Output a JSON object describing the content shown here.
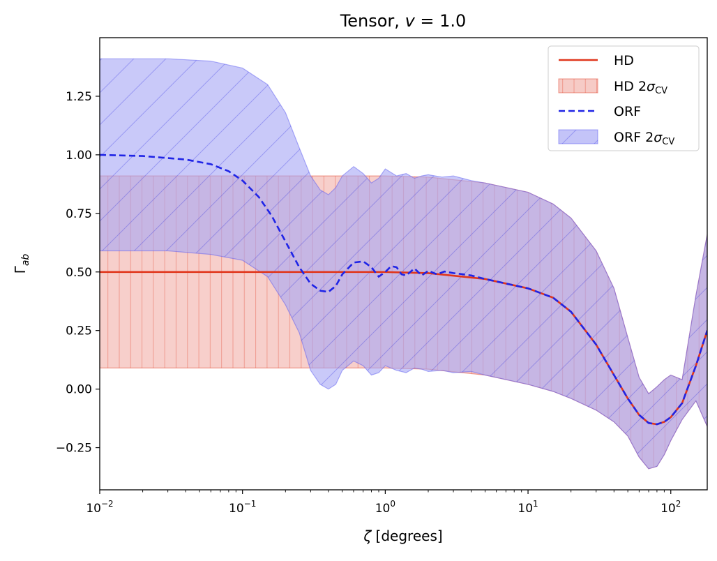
{
  "chart_data": {
    "type": "line",
    "title_prefix": "Tensor, ",
    "title_var": "v",
    "title_suffix": " = 1.0",
    "xlabel_var": "ζ",
    "xlabel_unit": " [degrees]",
    "ylabel_main": "Γ",
    "ylabel_sub": "ab",
    "xscale": "log",
    "xlim": [
      0.01,
      180
    ],
    "ylim": [
      -0.43,
      1.5
    ],
    "xtick_base": "10",
    "xticks": [
      {
        "value": 0.01,
        "exp": "−2"
      },
      {
        "value": 0.1,
        "exp": "−1"
      },
      {
        "value": 1,
        "exp": "0"
      },
      {
        "value": 10,
        "exp": "1"
      },
      {
        "value": 100,
        "exp": "2"
      }
    ],
    "yticks": [
      {
        "value": -0.25,
        "label": "−0.25"
      },
      {
        "value": 0.0,
        "label": "0.00"
      },
      {
        "value": 0.25,
        "label": "0.25"
      },
      {
        "value": 0.5,
        "label": "0.50"
      },
      {
        "value": 0.75,
        "label": "0.75"
      },
      {
        "value": 1.0,
        "label": "1.00"
      },
      {
        "value": 1.25,
        "label": "1.25"
      }
    ],
    "grid": false,
    "legend_position": "top-right",
    "colors": {
      "hd_line": "#e0361c",
      "hd_fill": "#f0a8a0",
      "hd_edge": "#e0361c",
      "orf_line": "#1f24e6",
      "orf_fill": "#a5a5f5",
      "orf_edge": "#5050f0"
    },
    "legend": [
      {
        "key": "hd",
        "label": "HD",
        "style": "line"
      },
      {
        "key": "hd_band",
        "label_main": "HD 2",
        "label_sym": "σ",
        "label_sub": "CV",
        "style": "patch-hd"
      },
      {
        "key": "orf",
        "label": "ORF",
        "style": "dashed"
      },
      {
        "key": "orf_band",
        "label_main": "ORF 2",
        "label_sym": "σ",
        "label_sub": "CV",
        "style": "patch-orf"
      }
    ],
    "series": [
      {
        "name": "HD",
        "x": [
          0.01,
          0.1,
          1,
          2,
          5,
          10,
          15,
          20,
          30,
          40,
          50,
          60,
          70,
          80,
          90,
          100,
          120,
          150,
          180
        ],
        "y": [
          0.5,
          0.5,
          0.5,
          0.495,
          0.47,
          0.43,
          0.39,
          0.33,
          0.19,
          0.06,
          -0.04,
          -0.11,
          -0.145,
          -0.15,
          -0.14,
          -0.12,
          -0.06,
          0.1,
          0.25
        ]
      },
      {
        "name": "HD 2σ_CV upper",
        "x": [
          0.01,
          1,
          2,
          5,
          10,
          15,
          20,
          30,
          40,
          50,
          60,
          70,
          80,
          90,
          100,
          120,
          150,
          180
        ],
        "y": [
          0.91,
          0.91,
          0.905,
          0.88,
          0.84,
          0.79,
          0.73,
          0.59,
          0.43,
          0.22,
          0.05,
          -0.02,
          0.01,
          0.04,
          0.06,
          0.04,
          0.4,
          0.66
        ]
      },
      {
        "name": "HD 2σ_CV lower",
        "x": [
          0.01,
          1,
          2,
          5,
          10,
          15,
          20,
          30,
          40,
          50,
          60,
          70,
          80,
          90,
          100,
          120,
          150,
          180
        ],
        "y": [
          0.09,
          0.09,
          0.085,
          0.06,
          0.02,
          -0.01,
          -0.04,
          -0.09,
          -0.14,
          -0.2,
          -0.29,
          -0.34,
          -0.33,
          -0.28,
          -0.22,
          -0.13,
          -0.05,
          -0.16
        ]
      },
      {
        "name": "ORF",
        "x": [
          0.01,
          0.02,
          0.04,
          0.06,
          0.08,
          0.1,
          0.13,
          0.16,
          0.2,
          0.25,
          0.3,
          0.35,
          0.4,
          0.45,
          0.5,
          0.6,
          0.7,
          0.8,
          0.9,
          1.0,
          1.1,
          1.2,
          1.3,
          1.4,
          1.6,
          1.8,
          2.0,
          2.3,
          2.6,
          3.0,
          3.5,
          4,
          5,
          10,
          15,
          20,
          30,
          40,
          50,
          60,
          70,
          80,
          90,
          100,
          120,
          150,
          180
        ],
        "y": [
          1.0,
          0.995,
          0.98,
          0.96,
          0.93,
          0.89,
          0.82,
          0.74,
          0.63,
          0.52,
          0.45,
          0.42,
          0.415,
          0.44,
          0.49,
          0.54,
          0.545,
          0.52,
          0.48,
          0.5,
          0.525,
          0.52,
          0.49,
          0.485,
          0.515,
          0.485,
          0.505,
          0.49,
          0.502,
          0.495,
          0.49,
          0.485,
          0.47,
          0.43,
          0.39,
          0.33,
          0.19,
          0.06,
          -0.04,
          -0.11,
          -0.145,
          -0.15,
          -0.14,
          -0.12,
          -0.06,
          0.1,
          0.25
        ]
      },
      {
        "name": "ORF 2σ_CV upper",
        "x": [
          0.01,
          0.03,
          0.06,
          0.1,
          0.15,
          0.2,
          0.25,
          0.3,
          0.35,
          0.4,
          0.45,
          0.5,
          0.6,
          0.7,
          0.8,
          0.9,
          1.0,
          1.2,
          1.4,
          1.6,
          1.8,
          2,
          2.5,
          3,
          4,
          5,
          10,
          15,
          20,
          30,
          40,
          50,
          60,
          70,
          80,
          90,
          100,
          120,
          150,
          180
        ],
        "y": [
          1.41,
          1.41,
          1.4,
          1.37,
          1.3,
          1.18,
          1.03,
          0.91,
          0.85,
          0.83,
          0.86,
          0.91,
          0.95,
          0.92,
          0.88,
          0.9,
          0.94,
          0.91,
          0.92,
          0.9,
          0.91,
          0.915,
          0.905,
          0.91,
          0.89,
          0.88,
          0.84,
          0.79,
          0.73,
          0.59,
          0.43,
          0.22,
          0.05,
          -0.02,
          0.01,
          0.04,
          0.06,
          0.04,
          0.4,
          0.66
        ]
      },
      {
        "name": "ORF 2σ_CV lower",
        "x": [
          0.01,
          0.03,
          0.06,
          0.1,
          0.15,
          0.2,
          0.25,
          0.3,
          0.35,
          0.4,
          0.45,
          0.5,
          0.6,
          0.7,
          0.8,
          0.9,
          1.0,
          1.2,
          1.4,
          1.6,
          1.8,
          2,
          2.5,
          3,
          4,
          5,
          10,
          15,
          20,
          30,
          40,
          50,
          60,
          70,
          80,
          90,
          100,
          120,
          150,
          180
        ],
        "y": [
          0.59,
          0.59,
          0.575,
          0.55,
          0.48,
          0.36,
          0.24,
          0.08,
          0.02,
          0.0,
          0.02,
          0.08,
          0.12,
          0.1,
          0.06,
          0.07,
          0.1,
          0.08,
          0.07,
          0.09,
          0.085,
          0.075,
          0.08,
          0.07,
          0.075,
          0.06,
          0.02,
          -0.01,
          -0.04,
          -0.09,
          -0.14,
          -0.2,
          -0.29,
          -0.34,
          -0.33,
          -0.28,
          -0.22,
          -0.13,
          -0.05,
          -0.16
        ]
      }
    ]
  }
}
